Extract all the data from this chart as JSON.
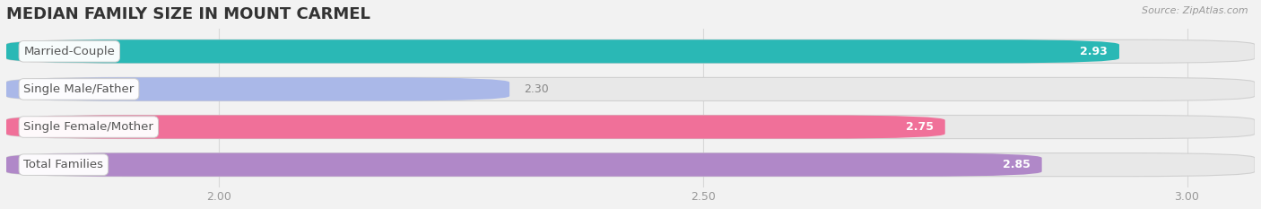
{
  "title": "MEDIAN FAMILY SIZE IN MOUNT CARMEL",
  "source": "Source: ZipAtlas.com",
  "categories": [
    "Married-Couple",
    "Single Male/Father",
    "Single Female/Mother",
    "Total Families"
  ],
  "values": [
    2.93,
    2.3,
    2.75,
    2.85
  ],
  "bar_colors": [
    "#2ab8b5",
    "#aab8e8",
    "#f07099",
    "#b088c8"
  ],
  "value_colors": [
    "white",
    "#888888",
    "white",
    "white"
  ],
  "value_ha": [
    "right",
    "left",
    "right",
    "right"
  ],
  "xlim_left": 1.78,
  "xlim_right": 3.07,
  "xticks": [
    2.0,
    2.5,
    3.0
  ],
  "xtick_labels": [
    "2.00",
    "2.50",
    "3.00"
  ],
  "bar_height": 0.62,
  "track_color": "#e8e8e8",
  "track_edge_color": "#d0d0d0",
  "background_color": "#f2f2f2",
  "plot_bg_color": "#f2f2f2",
  "title_fontsize": 13,
  "label_fontsize": 9.5,
  "value_fontsize": 9,
  "tick_fontsize": 9,
  "grid_color": "#d8d8d8",
  "rounding_size": 0.13
}
